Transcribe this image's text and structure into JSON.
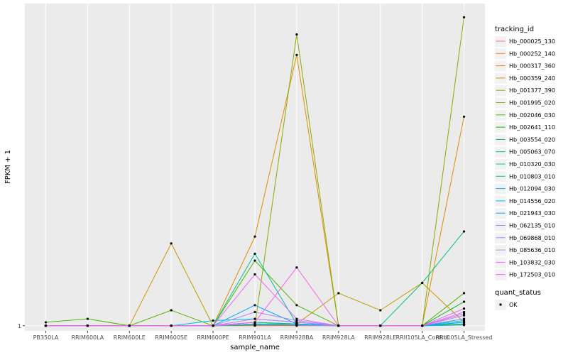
{
  "chart_data": {
    "type": "line",
    "title": "",
    "xlabel": "sample_name",
    "ylabel": "FPKM + 1",
    "categories": [
      "PB350LA",
      "RRIM600LA",
      "RRIM600LE",
      "RRIM600SE",
      "RRIM600PE",
      "RRIM901LA",
      "RRIM928BA",
      "RRIM928LA",
      "RRIM928LE",
      "RRII105LA_Control",
      "RRII105LA_Stressed"
    ],
    "ytick_labels": [
      "1"
    ],
    "ylim": [
      0.85,
      10.4
    ],
    "grid": true,
    "legend": {
      "title": "tracking_id",
      "position": "right",
      "quant_status_title": "quant_status",
      "quant_status_entries": [
        "OK"
      ]
    },
    "series": [
      {
        "name": "Hb_000025_130",
        "color": "#F8766D",
        "values": [
          1,
          1,
          1,
          1,
          1,
          1,
          1,
          1,
          1,
          1,
          1.02
        ]
      },
      {
        "name": "Hb_000252_140",
        "color": "#EB8335",
        "values": [
          1,
          1,
          1,
          1,
          1,
          1.02,
          1.01,
          1,
          1,
          1,
          1.03
        ]
      },
      {
        "name": "Hb_000317_360",
        "color": "#DA8F00",
        "values": [
          1,
          1,
          1,
          1,
          1,
          3.6,
          8.9,
          1,
          1,
          1,
          7.1
        ]
      },
      {
        "name": "Hb_000359_240",
        "color": "#C49A00",
        "values": [
          1,
          1,
          1,
          3.4,
          1,
          1.1,
          1.05,
          1.95,
          1.45,
          2.25,
          1.1
        ]
      },
      {
        "name": "Hb_001377_390",
        "color": "#A9A400",
        "values": [
          1,
          1,
          1,
          1,
          1,
          1.05,
          1.03,
          1,
          1,
          1,
          1.05
        ]
      },
      {
        "name": "Hb_001995_020",
        "color": "#86AC00",
        "values": [
          1,
          1,
          1,
          1,
          1,
          1.02,
          9.5,
          1,
          1,
          1,
          10
        ]
      },
      {
        "name": "Hb_002046_030",
        "color": "#53B400",
        "values": [
          1.1,
          1.2,
          1,
          1.45,
          1,
          2.9,
          1.6,
          1,
          1,
          1,
          1.95
        ]
      },
      {
        "name": "Hb_002641_110",
        "color": "#00B81F",
        "values": [
          1,
          1,
          1,
          1,
          1,
          1.05,
          1.05,
          1,
          1,
          1,
          1.7
        ]
      },
      {
        "name": "Hb_003554_020",
        "color": "#00BC59",
        "values": [
          1,
          1,
          1,
          1,
          1,
          1.02,
          1.02,
          1,
          1,
          1,
          1.05
        ]
      },
      {
        "name": "Hb_005063_070",
        "color": "#00BF7D",
        "values": [
          1,
          1,
          1,
          1,
          1,
          1.03,
          1.02,
          1,
          1,
          2.25,
          3.75
        ]
      },
      {
        "name": "Hb_010320_030",
        "color": "#00C19C",
        "values": [
          1,
          1,
          1,
          1,
          1,
          3.1,
          1.05,
          1,
          1,
          1,
          1.1
        ]
      },
      {
        "name": "Hb_010803_010",
        "color": "#00C0B8",
        "values": [
          1,
          1,
          1,
          1,
          1,
          1.1,
          1.05,
          1,
          1,
          1,
          1.2
        ]
      },
      {
        "name": "Hb_012094_030",
        "color": "#00BCD4",
        "values": [
          1,
          1,
          1,
          1,
          1.15,
          1.2,
          1.1,
          1,
          1,
          1,
          1.15
        ]
      },
      {
        "name": "Hb_014556_020",
        "color": "#00B5EE",
        "values": [
          1,
          1,
          1,
          1,
          1,
          1.05,
          1.02,
          1,
          1,
          1,
          1.02
        ]
      },
      {
        "name": "Hb_021943_030",
        "color": "#00A8FF",
        "values": [
          1,
          1,
          1,
          1,
          1,
          1.6,
          1.05,
          1,
          1,
          1,
          1.1
        ]
      },
      {
        "name": "Hb_062135_010",
        "color": "#7F96FF",
        "values": [
          1,
          1,
          1,
          1,
          1,
          1.05,
          1.02,
          1,
          1,
          1,
          1.2
        ]
      },
      {
        "name": "Hb_069868_010",
        "color": "#A58AFF",
        "values": [
          1,
          1,
          1,
          1,
          1,
          1.4,
          1.15,
          1,
          1,
          1,
          1.3
        ]
      },
      {
        "name": "Hb_085636_010",
        "color": "#C77CFF",
        "values": [
          1,
          1,
          1,
          1,
          1,
          1.2,
          1.1,
          1,
          1,
          1,
          1.4
        ]
      },
      {
        "name": "Hb_103832_030",
        "color": "#E76BF3",
        "values": [
          1,
          1,
          1,
          1,
          1,
          2.5,
          1.2,
          1,
          1,
          1,
          1.5
        ]
      },
      {
        "name": "Hb_172503_010",
        "color": "#F564E3",
        "values": [
          1,
          1,
          1,
          1,
          1,
          1.1,
          2.7,
          1,
          1,
          1,
          1.35
        ]
      }
    ]
  }
}
